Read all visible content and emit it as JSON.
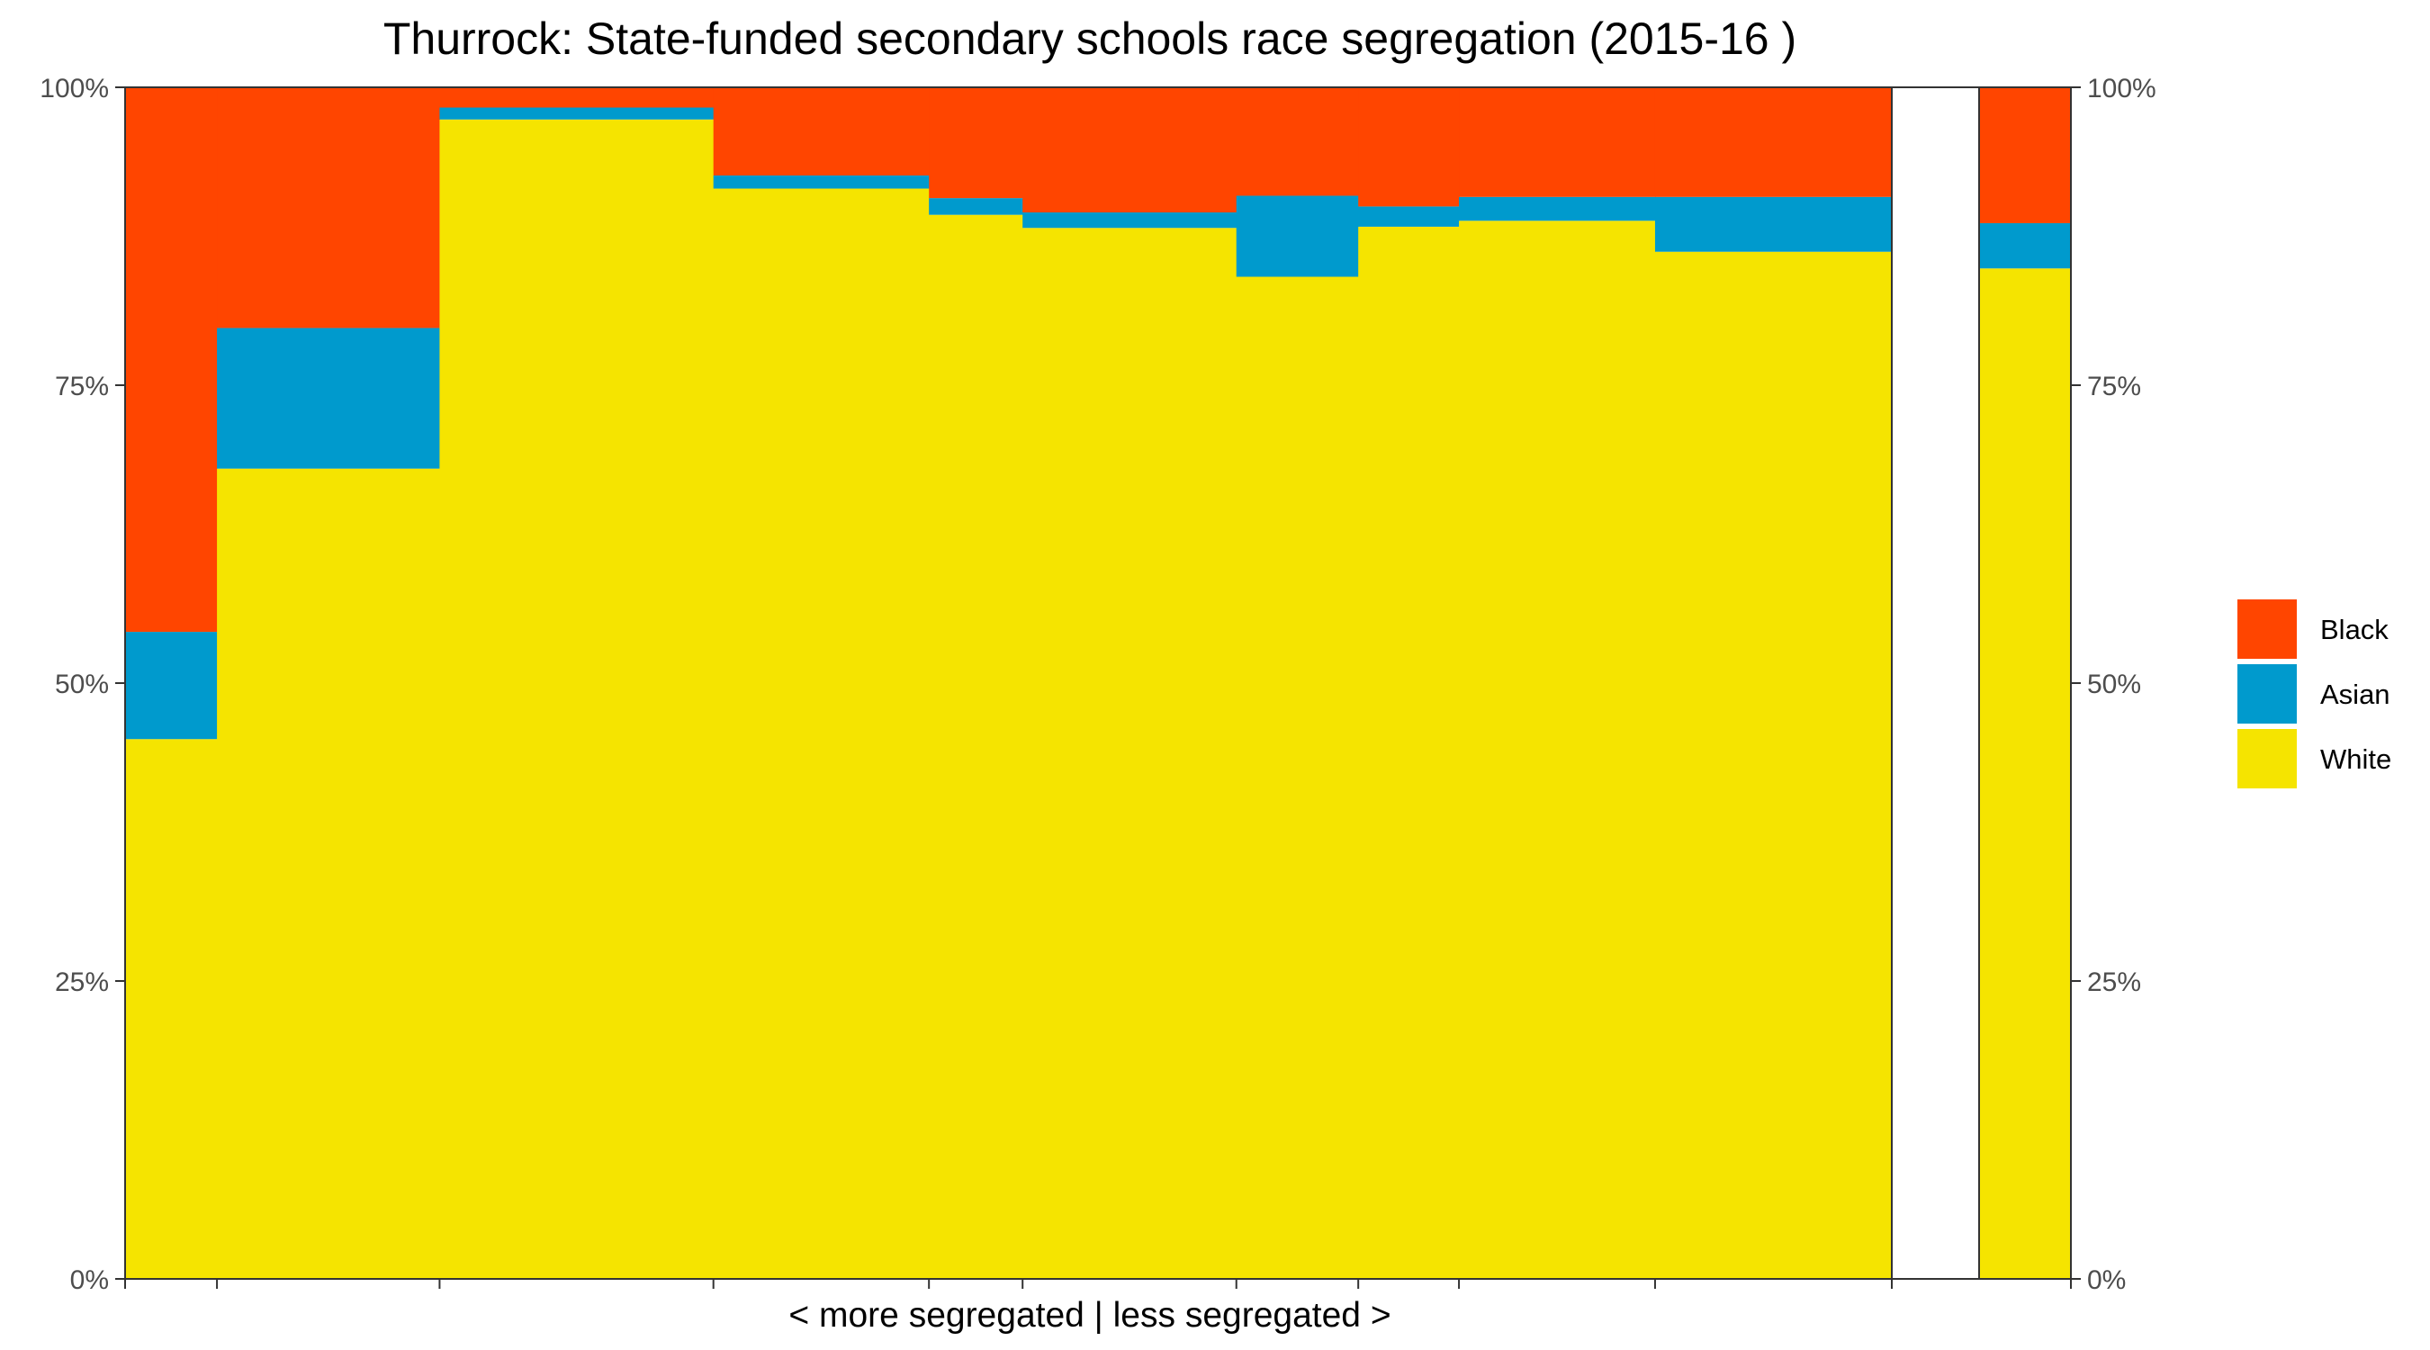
{
  "chart_data": {
    "type": "bar",
    "subtype": "stacked-mosaic",
    "title": "Thurrock: State-funded secondary schools race segregation (2015-16 )",
    "xlabel": "< more segregated | less segregated >",
    "ylabel": "",
    "ylim": [
      0,
      100
    ],
    "y_ticks": [
      "0%",
      "25%",
      "50%",
      "75%",
      "100%"
    ],
    "y_ticks_right": [
      "0%",
      "25%",
      "50%",
      "75%",
      "100%"
    ],
    "grid": false,
    "legend_position": "right",
    "legend": [
      {
        "key": "black",
        "label": "Black",
        "color": "#FF4500"
      },
      {
        "key": "asian",
        "label": "Asian",
        "color": "#009ACD"
      },
      {
        "key": "white",
        "label": "White",
        "color": "#F5E400"
      }
    ],
    "series_order_bottom_to_top": [
      "white",
      "asian",
      "black"
    ],
    "bars": [
      {
        "share": 0.052,
        "white": 45.3,
        "asian": 9.0,
        "black": 45.7
      },
      {
        "share": 0.126,
        "white": 68.0,
        "asian": 11.8,
        "black": 20.2
      },
      {
        "share": 0.155,
        "white": 97.3,
        "asian": 1.0,
        "black": 1.7
      },
      {
        "share": 0.122,
        "white": 91.5,
        "asian": 1.1,
        "black": 7.4
      },
      {
        "share": 0.053,
        "white": 89.3,
        "asian": 1.4,
        "black": 9.3
      },
      {
        "share": 0.121,
        "white": 88.2,
        "asian": 1.3,
        "black": 10.5
      },
      {
        "share": 0.069,
        "white": 84.1,
        "asian": 6.8,
        "black": 9.1
      },
      {
        "share": 0.057,
        "white": 88.3,
        "asian": 1.7,
        "black": 10.0
      },
      {
        "share": 0.111,
        "white": 88.8,
        "asian": 2.0,
        "black": 9.2
      },
      {
        "share": 0.134,
        "white": 86.2,
        "asian": 4.6,
        "black": 9.2
      }
    ],
    "overall_bar": {
      "white": 84.8,
      "asian": 3.8,
      "black": 11.4
    }
  }
}
